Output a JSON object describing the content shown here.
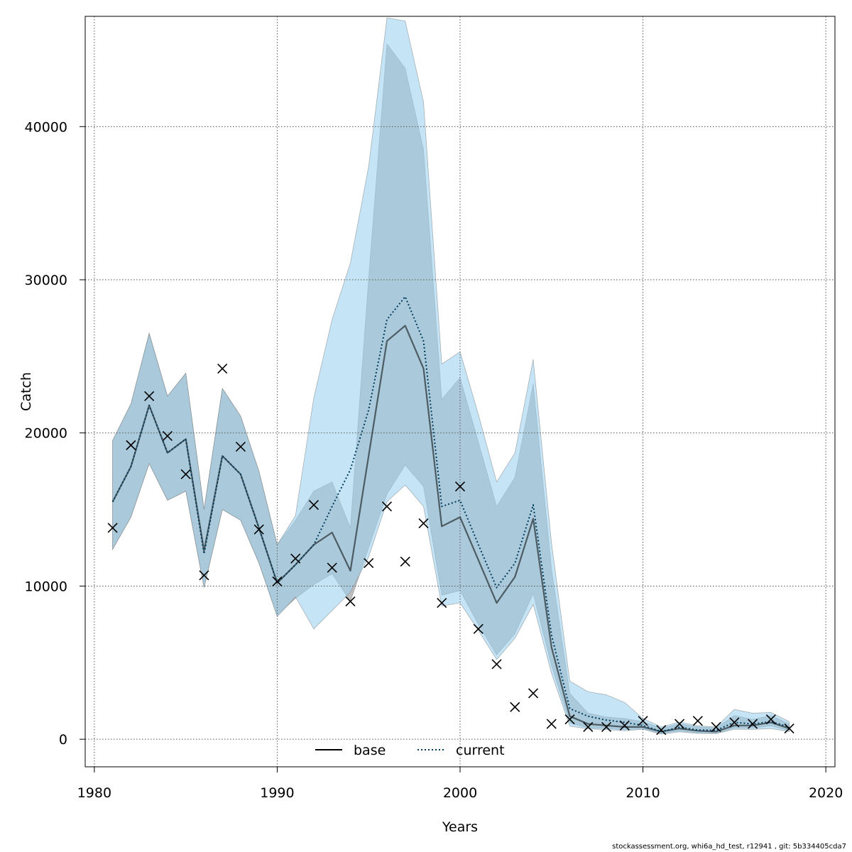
{
  "chart_data": {
    "type": "line",
    "xlabel": "Years",
    "ylabel": "Catch",
    "xlim": [
      1979.5,
      2020.5
    ],
    "ylim": [
      -1800,
      47200
    ],
    "x_ticks": [
      1980,
      1990,
      2000,
      2010,
      2020
    ],
    "y_ticks": [
      0,
      10000,
      20000,
      30000,
      40000
    ],
    "grid": true,
    "legend_position": "bottom-center",
    "colors": {
      "base_line": "#000000",
      "base_band": "#b3b3b3",
      "current_line": "#003b5c",
      "current_band": "#9bd2ef",
      "observed": "#000000"
    },
    "x": [
      1981,
      1982,
      1983,
      1984,
      1985,
      1986,
      1987,
      1988,
      1989,
      1990,
      1991,
      1992,
      1993,
      1994,
      1995,
      1996,
      1997,
      1998,
      1999,
      2000,
      2001,
      2002,
      2003,
      2004,
      2005,
      2006,
      2007,
      2008,
      2009,
      2010,
      2011,
      2012,
      2013,
      2014,
      2015,
      2016,
      2017,
      2018
    ],
    "series": [
      {
        "name": "base",
        "style": "solid",
        "values": [
          15500,
          17800,
          21800,
          18700,
          19600,
          12300,
          18500,
          17300,
          13800,
          10200,
          11400,
          12700,
          13500,
          11000,
          18500,
          26000,
          27000,
          24200,
          13900,
          14500,
          11700,
          8900,
          10600,
          14400,
          6000,
          1500,
          1000,
          900,
          800,
          800,
          500,
          700,
          550,
          500,
          900,
          900,
          1100,
          700
        ],
        "lower": [
          12400,
          14500,
          18000,
          15600,
          16200,
          9900,
          15000,
          14300,
          11500,
          8100,
          9200,
          10100,
          10800,
          9000,
          12500,
          16000,
          17900,
          16500,
          9400,
          9700,
          7500,
          5500,
          6900,
          9500,
          4800,
          1050,
          750,
          700,
          620,
          680,
          380,
          530,
          420,
          380,
          720,
          720,
          870,
          560
        ],
        "upper": [
          19500,
          21900,
          26500,
          22400,
          23900,
          15000,
          22900,
          21100,
          17500,
          12700,
          14300,
          16200,
          16800,
          13800,
          30100,
          45400,
          43800,
          38500,
          22200,
          23600,
          19400,
          15200,
          17100,
          23200,
          11100,
          3000,
          1700,
          1450,
          1350,
          1150,
          720,
          1000,
          800,
          750,
          1550,
          1300,
          1550,
          1000
        ]
      },
      {
        "name": "current",
        "style": "dotted",
        "values": [
          15500,
          17800,
          21800,
          18700,
          19600,
          12100,
          18500,
          17300,
          13800,
          10200,
          11400,
          12700,
          15200,
          17600,
          21500,
          27400,
          28900,
          26000,
          15200,
          15600,
          12700,
          9900,
          11500,
          15300,
          6800,
          2000,
          1500,
          1250,
          1100,
          900,
          500,
          780,
          600,
          580,
          1100,
          1000,
          1150,
          800
        ],
        "lower": [
          12400,
          14500,
          18000,
          15600,
          16200,
          9900,
          15000,
          14300,
          11500,
          8000,
          9300,
          7200,
          8400,
          9600,
          11900,
          15500,
          16600,
          15200,
          8700,
          8900,
          7100,
          5200,
          6600,
          8800,
          4300,
          850,
          680,
          620,
          550,
          650,
          330,
          480,
          380,
          370,
          650,
          640,
          700,
          500
        ],
        "upper": [
          19500,
          21900,
          26500,
          22400,
          23900,
          15000,
          22900,
          21100,
          17500,
          12700,
          14600,
          22300,
          27400,
          31100,
          37400,
          47100,
          46900,
          41600,
          24500,
          25300,
          21200,
          16800,
          18700,
          24800,
          12800,
          3800,
          3100,
          2900,
          2400,
          1350,
          800,
          1130,
          870,
          800,
          1950,
          1700,
          1750,
          1150
        ]
      }
    ],
    "observed": {
      "marker": "x",
      "values": [
        13800,
        19200,
        22400,
        19800,
        17300,
        10700,
        24200,
        19100,
        13700,
        10300,
        11800,
        15300,
        11200,
        9000,
        11500,
        15200,
        11600,
        14100,
        8900,
        16500,
        7200,
        4900,
        2100,
        3000,
        1000,
        1300,
        800,
        800,
        900,
        1200,
        600,
        1000,
        1200,
        800,
        1100,
        1000,
        1300,
        700
      ]
    }
  },
  "footer": "stockassessment.org, whi6a_hd_test, r12941 , git: 5b334405cda7"
}
